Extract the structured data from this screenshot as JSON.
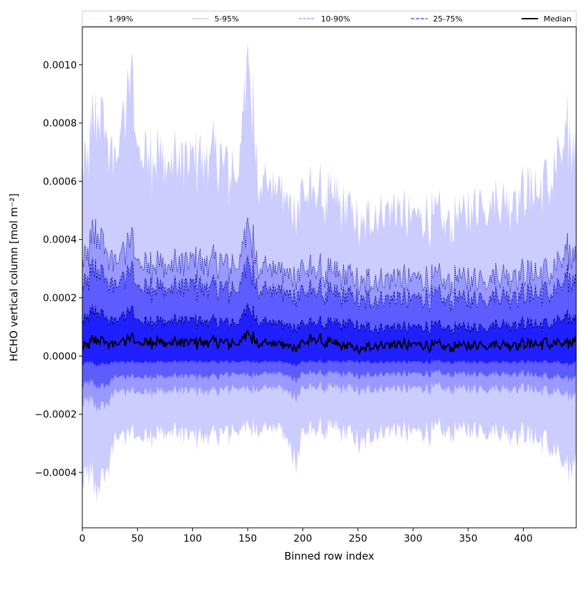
{
  "chart_data": {
    "type": "area",
    "title": "",
    "xlabel": "Binned row index",
    "ylabel": "HCHO vertical column [mol m⁻²]",
    "xlim": [
      0,
      448
    ],
    "ylim": [
      -0.00059,
      0.00113
    ],
    "xticks": [
      0,
      50,
      100,
      150,
      200,
      250,
      300,
      350,
      400
    ],
    "xtick_labels": [
      "0",
      "50",
      "100",
      "150",
      "200",
      "250",
      "300",
      "350",
      "400"
    ],
    "yticks": [
      -0.0004,
      -0.0002,
      0.0,
      0.0002,
      0.0004,
      0.0006,
      0.0008,
      0.001
    ],
    "ytick_labels": [
      "−0.0004",
      "−0.0002",
      "0.0000",
      "0.0002",
      "0.0004",
      "0.0006",
      "0.0008",
      "0.0010"
    ],
    "grid": false,
    "legend_position": "top",
    "x_keypoints": [
      0,
      5,
      12,
      20,
      30,
      44,
      50,
      60,
      80,
      100,
      120,
      140,
      151,
      160,
      180,
      195,
      200,
      210,
      230,
      252,
      265,
      280,
      300,
      320,
      340,
      360,
      380,
      400,
      420,
      430,
      440,
      448
    ],
    "bands": [
      {
        "name": "1-99%",
        "color": "#ccccff",
        "lower": [
          -0.00042,
          -0.0004,
          -0.00045,
          -0.00043,
          -0.00028,
          -0.00026,
          -0.00027,
          -0.00027,
          -0.00026,
          -0.00028,
          -0.00027,
          -0.00026,
          -0.00025,
          -0.00025,
          -0.00025,
          -0.00036,
          -0.00026,
          -0.00026,
          -0.00025,
          -0.0003,
          -0.00026,
          -0.00025,
          -0.00026,
          -0.00026,
          -0.00025,
          -0.00025,
          -0.00026,
          -0.00027,
          -0.00029,
          -0.00033,
          -0.0004,
          -0.00035
        ],
        "upper": [
          0.00069,
          0.00066,
          0.00085,
          0.00076,
          0.00066,
          0.00098,
          0.00074,
          0.0007,
          0.00066,
          0.00066,
          0.0007,
          0.0006,
          0.00098,
          0.0006,
          0.00056,
          0.0005,
          0.00056,
          0.00055,
          0.00053,
          0.00044,
          0.0005,
          0.00051,
          0.00048,
          0.00047,
          0.00048,
          0.00053,
          0.00053,
          0.00055,
          0.00059,
          0.00066,
          0.00075,
          0.0007
        ]
      },
      {
        "name": "5-95%",
        "color": "#9999ff",
        "lower": [
          -0.00016,
          -0.00015,
          -0.00017,
          -0.00018,
          -0.00012,
          -0.00012,
          -0.00012,
          -0.00012,
          -0.00012,
          -0.00012,
          -0.00012,
          -0.00011,
          -0.00012,
          -0.00011,
          -0.00011,
          -0.00014,
          -0.00011,
          -0.00011,
          -0.00011,
          -0.00012,
          -0.00011,
          -0.00011,
          -0.00011,
          -0.00011,
          -0.00011,
          -0.00011,
          -0.00011,
          -0.00011,
          -0.00012,
          -0.00012,
          -0.00014,
          -0.00013
        ],
        "upper": [
          0.00035,
          0.00034,
          0.00044,
          0.00036,
          0.00032,
          0.00041,
          0.00034,
          0.00032,
          0.00031,
          0.00032,
          0.00033,
          0.0003,
          0.00043,
          0.00031,
          0.00029,
          0.00028,
          0.0003,
          0.00029,
          0.00028,
          0.00025,
          0.00027,
          0.00027,
          0.00027,
          0.00026,
          0.00027,
          0.00027,
          0.00028,
          0.00028,
          0.00029,
          0.00031,
          0.00035,
          0.00035
        ]
      },
      {
        "name": "10-90%",
        "color": "#5c5cff",
        "lower": [
          -0.0001,
          -9e-05,
          -0.0001,
          -0.00011,
          -7e-05,
          -7e-05,
          -7e-05,
          -7e-05,
          -7e-05,
          -7e-05,
          -7e-05,
          -6e-05,
          -7e-05,
          -6e-05,
          -6e-05,
          -8e-05,
          -6e-05,
          -6e-05,
          -6e-05,
          -7e-05,
          -6e-05,
          -6e-05,
          -6e-05,
          -6e-05,
          -6e-05,
          -6e-05,
          -6e-05,
          -6e-05,
          -7e-05,
          -7e-05,
          -8e-05,
          -7e-05
        ],
        "upper": [
          0.00026,
          0.00025,
          0.00031,
          0.00026,
          0.00024,
          0.0003,
          0.00025,
          0.00024,
          0.00023,
          0.00024,
          0.00024,
          0.00022,
          0.00031,
          0.00023,
          0.00022,
          0.00021,
          0.00022,
          0.00022,
          0.00021,
          0.00019,
          0.0002,
          0.0002,
          0.0002,
          0.0002,
          0.0002,
          0.0002,
          0.00021,
          0.00021,
          0.00022,
          0.00023,
          0.00026,
          0.00026
        ]
      },
      {
        "name": "25-75%",
        "color": "#2020ff",
        "lower": [
          -3e-05,
          -2e-05,
          -3e-05,
          -3e-05,
          -2e-05,
          -2e-05,
          -2e-05,
          -2e-05,
          -2e-05,
          -2e-05,
          -2e-05,
          -2e-05,
          -2e-05,
          -2e-05,
          -2e-05,
          -3e-05,
          -2e-05,
          -2e-05,
          -2e-05,
          -2e-05,
          -2e-05,
          -2e-05,
          -2e-05,
          -2e-05,
          -2e-05,
          -2e-05,
          -2e-05,
          -2e-05,
          -2e-05,
          -2e-05,
          -3e-05,
          -2e-05
        ],
        "upper": [
          0.00013,
          0.00013,
          0.00016,
          0.00013,
          0.00012,
          0.00016,
          0.00013,
          0.00012,
          0.00012,
          0.00012,
          0.00012,
          0.00011,
          0.00016,
          0.00012,
          0.00011,
          0.0001,
          0.00011,
          0.00011,
          0.00011,
          0.0001,
          0.0001,
          0.0001,
          0.0001,
          0.0001,
          0.0001,
          0.0001,
          0.00011,
          0.00011,
          0.00011,
          0.00012,
          0.00013,
          0.00013
        ]
      }
    ],
    "median": {
      "name": "Median",
      "color": "#000000",
      "values": [
        4e-05,
        3.5e-05,
        6e-05,
        4.5e-05,
        4e-05,
        6.5e-05,
        5e-05,
        5e-05,
        4.5e-05,
        4.5e-05,
        5e-05,
        4e-05,
        7e-05,
        4.5e-05,
        4e-05,
        3e-05,
        4.5e-05,
        5.5e-05,
        4e-05,
        2e-05,
        4e-05,
        4e-05,
        4e-05,
        3.5e-05,
        3.5e-05,
        4e-05,
        4e-05,
        4e-05,
        4.5e-05,
        4.5e-05,
        4e-05,
        6e-05
      ]
    },
    "legend": [
      {
        "label": "1-99%",
        "color": "#c8c8ee",
        "style": "dotted-thin"
      },
      {
        "label": "5-95%",
        "color": "#4444aa",
        "style": "dotted"
      },
      {
        "label": "10-90%",
        "color": "#6a6af0",
        "style": "dashed"
      },
      {
        "label": "25-75%",
        "color": "#3434d8",
        "style": "dashed-bold"
      },
      {
        "label": "Median",
        "color": "#000000",
        "style": "solid"
      }
    ]
  }
}
